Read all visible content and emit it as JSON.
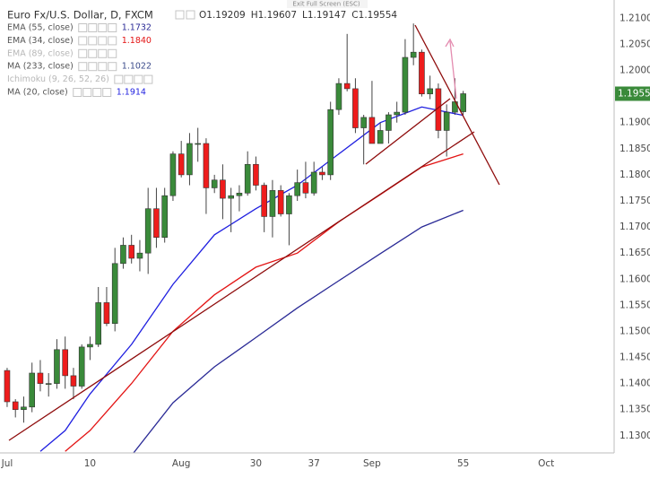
{
  "chart_data": {
    "type": "candlestick",
    "title": "Euro Fx/U.S. Dollar, D, FXCM",
    "screen_note": "Exit Full Screen (ESC)",
    "ohlc_labels": [
      "O",
      "H",
      "L",
      "C"
    ],
    "x": [
      0,
      1,
      2,
      3,
      4,
      5,
      6,
      7,
      8,
      9,
      10,
      11,
      12,
      13,
      14,
      15,
      16,
      17,
      18,
      19,
      20,
      21,
      22,
      23,
      24,
      25,
      26,
      27,
      28,
      29,
      30,
      31,
      32,
      33,
      34,
      35,
      36,
      37,
      38,
      39,
      40,
      41,
      42,
      43,
      44,
      45,
      46,
      47,
      48,
      49,
      50,
      51,
      52,
      53,
      54,
      55
    ],
    "open": [
      1.1425,
      1.1365,
      1.135,
      1.1355,
      1.142,
      1.14,
      1.14,
      1.1465,
      1.1415,
      1.1395,
      1.147,
      1.1475,
      1.1555,
      1.1515,
      1.163,
      1.1665,
      1.164,
      1.165,
      1.1735,
      1.168,
      1.176,
      1.184,
      1.18,
      1.186,
      1.186,
      1.1775,
      1.179,
      1.1755,
      1.176,
      1.1765,
      1.182,
      1.178,
      1.172,
      1.177,
      1.1725,
      1.176,
      1.1785,
      1.1765,
      1.1805,
      1.18,
      1.1925,
      1.1975,
      1.1965,
      1.189,
      1.191,
      1.186,
      1.1885,
      1.1915,
      1.192,
      1.2025,
      1.2035,
      1.1955,
      1.1965,
      1.1885,
      1.192,
      1.19209
    ],
    "high": [
      1.143,
      1.137,
      1.1375,
      1.144,
      1.1445,
      1.142,
      1.1485,
      1.149,
      1.143,
      1.1475,
      1.149,
      1.1585,
      1.1585,
      1.166,
      1.168,
      1.1685,
      1.1675,
      1.1775,
      1.1775,
      1.1775,
      1.1845,
      1.1865,
      1.188,
      1.189,
      1.187,
      1.18,
      1.182,
      1.1775,
      1.178,
      1.1845,
      1.1835,
      1.1785,
      1.179,
      1.178,
      1.1765,
      1.181,
      1.1825,
      1.1825,
      1.1815,
      1.194,
      1.1985,
      1.207,
      1.1985,
      1.1915,
      1.198,
      1.19,
      1.192,
      1.194,
      1.206,
      1.209,
      1.204,
      1.199,
      1.1975,
      1.1935,
      1.1985,
      1.19607
    ],
    "low": [
      1.1355,
      1.1335,
      1.1325,
      1.1345,
      1.1385,
      1.1375,
      1.139,
      1.139,
      1.137,
      1.139,
      1.1445,
      1.147,
      1.151,
      1.15,
      1.162,
      1.163,
      1.1615,
      1.161,
      1.166,
      1.167,
      1.175,
      1.1795,
      1.178,
      1.1825,
      1.1725,
      1.1765,
      1.1715,
      1.169,
      1.173,
      1.176,
      1.177,
      1.169,
      1.168,
      1.172,
      1.1665,
      1.175,
      1.1755,
      1.176,
      1.179,
      1.179,
      1.1915,
      1.196,
      1.188,
      1.182,
      1.186,
      1.186,
      1.186,
      1.19,
      1.1915,
      1.201,
      1.195,
      1.1945,
      1.187,
      1.1835,
      1.1915,
      1.19147
    ],
    "close": [
      1.1365,
      1.135,
      1.1355,
      1.142,
      1.14,
      1.14,
      1.1465,
      1.1415,
      1.1395,
      1.147,
      1.1475,
      1.1555,
      1.1515,
      1.163,
      1.1665,
      1.164,
      1.165,
      1.1735,
      1.168,
      1.176,
      1.184,
      1.18,
      1.186,
      1.186,
      1.1775,
      1.179,
      1.1755,
      1.176,
      1.1765,
      1.182,
      1.178,
      1.172,
      1.177,
      1.1725,
      1.176,
      1.1785,
      1.1765,
      1.1805,
      1.18,
      1.1925,
      1.1975,
      1.1965,
      1.189,
      1.191,
      1.186,
      1.1885,
      1.1915,
      1.192,
      1.2025,
      1.2035,
      1.1955,
      1.1965,
      1.1885,
      1.192,
      1.194,
      1.19554
    ],
    "up_color": "#3a8a3a",
    "down_color": "#ee1c1c",
    "indicators": [
      {
        "name": "EMA (55, close)",
        "value_label": "1.1732",
        "color": "#2a2a96",
        "x": [
          15,
          20,
          25,
          30,
          35,
          40,
          45,
          50,
          55
        ],
        "values": [
          1.1262,
          1.1363,
          1.1432,
          1.1488,
          1.1545,
          1.1597,
          1.1649,
          1.17,
          1.1732
        ]
      },
      {
        "name": "EMA (34, close)",
        "value_label": "1.1840",
        "color": "#e31414",
        "x": [
          7,
          10,
          15,
          20,
          25,
          30,
          35,
          40,
          45,
          50,
          55
        ],
        "values": [
          1.127,
          1.131,
          1.14,
          1.15,
          1.157,
          1.1623,
          1.165,
          1.171,
          1.1762,
          1.1815,
          1.184
        ]
      },
      {
        "name": "EMA (89, close)",
        "faded": true
      },
      {
        "name": "MA (233, close)",
        "value_label": "1.1022",
        "color": "#3a4a8a"
      },
      {
        "name": "Ichimoku (9, 26, 52, 26)",
        "faded": true
      },
      {
        "name": "MA (20, close)",
        "value_label": "1.1914",
        "color": "#1f1fe0",
        "x": [
          4,
          7,
          10,
          15,
          20,
          25,
          30,
          35,
          40,
          45,
          50,
          55
        ],
        "values": [
          1.127,
          1.131,
          1.138,
          1.1475,
          1.159,
          1.1685,
          1.1735,
          1.178,
          1.184,
          1.19,
          1.193,
          1.1914
        ]
      }
    ],
    "xlim": [
      -0.86,
      73.2
    ],
    "xticks": [
      {
        "value": 0,
        "label": "Jul"
      },
      10,
      {
        "value": 21,
        "label": "Aug"
      },
      30,
      37,
      {
        "value": 44,
        "label": "Sep"
      },
      55,
      {
        "value": 65,
        "label": "Oct"
      }
    ],
    "ylim": [
      1.1267,
      1.2135
    ],
    "yticks": [
      {
        "value": 1.13,
        "label": "1.13000"
      },
      {
        "value": 1.135,
        "label": "1.13500"
      },
      {
        "value": 1.14,
        "label": "1.14000"
      },
      {
        "value": 1.145,
        "label": "1.14500"
      },
      {
        "value": 1.15,
        "label": "1.15000"
      },
      {
        "value": 1.155,
        "label": "1.15500"
      },
      {
        "value": 1.16,
        "label": "1.16000"
      },
      {
        "value": 1.165,
        "label": "1.16500"
      },
      {
        "value": 1.17,
        "label": "1.17000"
      },
      {
        "value": 1.175,
        "label": "1.17500"
      },
      {
        "value": 1.18,
        "label": "1.18000"
      },
      {
        "value": 1.185,
        "label": "1.18500"
      },
      {
        "value": 1.19,
        "label": "1.19000"
      },
      {
        "value": 1.195,
        "label": "1.19500"
      },
      {
        "value": 1.2,
        "label": "1.20000"
      },
      {
        "value": 1.205,
        "label": "1.20500"
      },
      {
        "value": 1.21,
        "label": "1.21000"
      }
    ],
    "grid": true
  }
}
